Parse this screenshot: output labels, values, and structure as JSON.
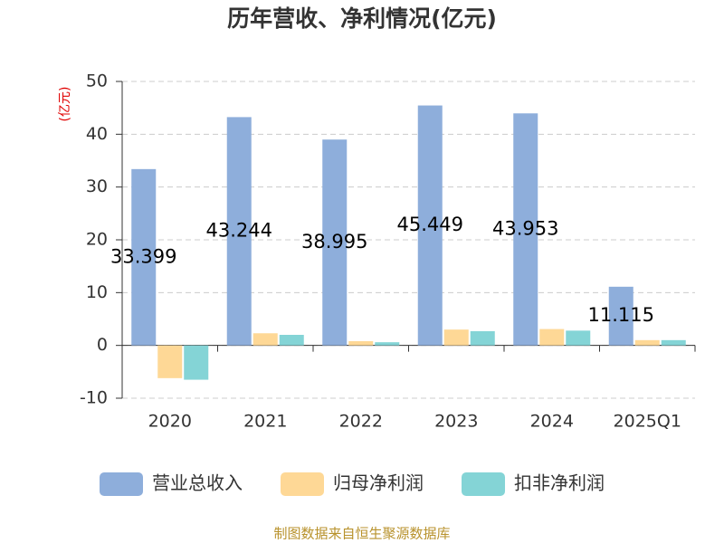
{
  "chart_data": {
    "type": "bar",
    "title": "历年营收、净利情况(亿元)",
    "y_label": "(亿元)",
    "categories": [
      "2020",
      "2021",
      "2022",
      "2023",
      "2024",
      "2025Q1"
    ],
    "series": [
      {
        "name": "营业总收入",
        "color": "#8eaedb",
        "values": [
          33.399,
          43.244,
          38.995,
          45.449,
          43.953,
          11.115
        ],
        "show_labels": true
      },
      {
        "name": "归母净利润",
        "color": "#fed896",
        "values": [
          -6.2,
          2.3,
          0.8,
          3.0,
          3.1,
          1.0
        ]
      },
      {
        "name": "扣非净利润",
        "color": "#84d4d6",
        "values": [
          -6.5,
          2.0,
          0.6,
          2.7,
          2.8,
          1.0
        ]
      }
    ],
    "ylim": [
      -10,
      50
    ],
    "yticks": [
      -10,
      0,
      10,
      20,
      30,
      40,
      50
    ],
    "grid": true,
    "legend": "bottom",
    "source": "制图数据来自恒生聚源数据库"
  }
}
